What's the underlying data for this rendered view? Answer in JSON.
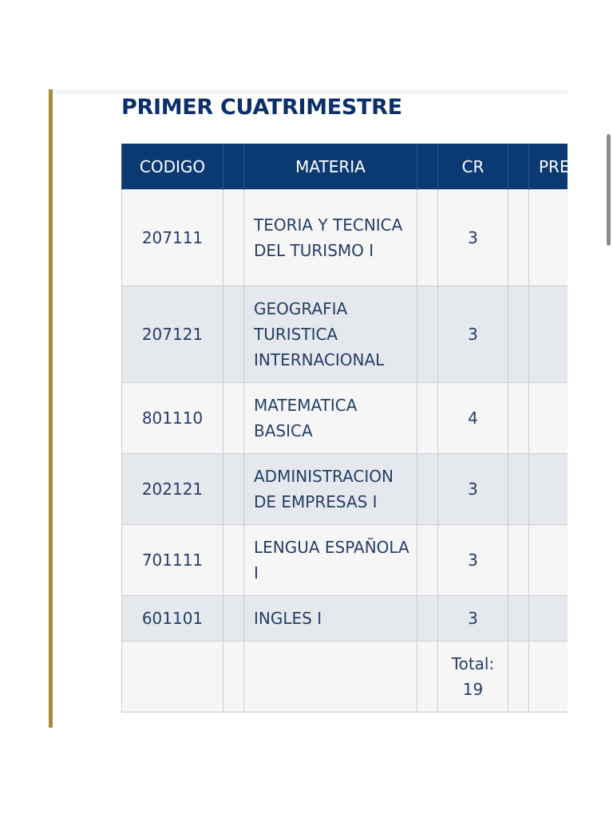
{
  "section": {
    "title": "PRIMER CUATRIMESTRE"
  },
  "table": {
    "headers": {
      "codigo": "CODIGO",
      "materia": "MATERIA",
      "cr": "CR",
      "pre": "PRE"
    },
    "rows": [
      {
        "codigo": "207111",
        "materia": "TEORIA Y TECNICA DEL TURISMO I",
        "cr": "3"
      },
      {
        "codigo": "207121",
        "materia": "GEOGRAFIA TURISTICA INTERNACIONAL",
        "cr": "3"
      },
      {
        "codigo": "801110",
        "materia": "MATEMATICA BASICA",
        "cr": "4"
      },
      {
        "codigo": "202121",
        "materia": "ADMINISTRACION DE EMPRESAS I",
        "cr": "3"
      },
      {
        "codigo": "701111",
        "materia": "LENGUA ESPAÑOLA I",
        "cr": "3"
      },
      {
        "codigo": "601101",
        "materia": "INGLES I",
        "cr": "3"
      }
    ],
    "total": {
      "label": "Total:",
      "value": "19"
    }
  },
  "colors": {
    "accent_bar": "#a88a3c",
    "header_bg": "#0b3a73",
    "title_text": "#0b2f6b",
    "row_alt": "#e5e8ed"
  }
}
